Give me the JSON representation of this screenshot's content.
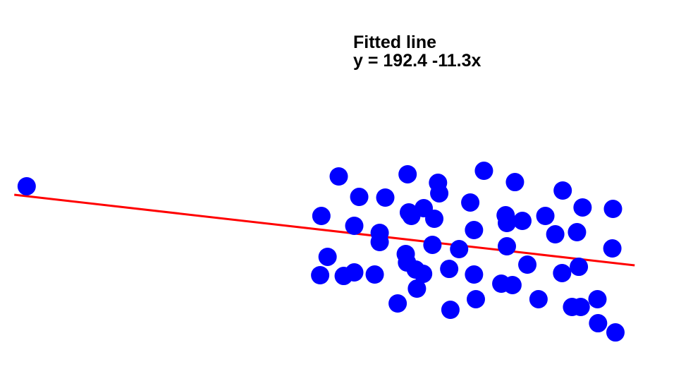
{
  "chart_data": {
    "type": "scatter",
    "title": "",
    "xlabel": "",
    "ylabel": "",
    "axes_visible": false,
    "grid": false,
    "xlim": [
      -0.23,
      10.94
    ],
    "ylim": [
      -94.6,
      504.3
    ],
    "annotation": {
      "line1": "Fitted line",
      "line2": "y = 192.4 -11.3x"
    },
    "fit": {
      "intercept": 192.4,
      "slope": -11.3,
      "x_range": [
        0,
        10
      ],
      "color": "#ff0000"
    },
    "marker_color": "#0000ff",
    "points": [
      [
        0.2,
        206.0
      ],
      [
        5.23,
        221.8
      ],
      [
        6.34,
        225.2
      ],
      [
        7.57,
        230.8
      ],
      [
        6.83,
        211.6
      ],
      [
        8.07,
        212.7
      ],
      [
        5.56,
        189.0
      ],
      [
        5.98,
        187.9
      ],
      [
        6.85,
        194.7
      ],
      [
        8.84,
        199.2
      ],
      [
        7.35,
        180.0
      ],
      [
        9.16,
        172.1
      ],
      [
        9.65,
        169.8
      ],
      [
        4.95,
        158.5
      ],
      [
        6.36,
        164.1
      ],
      [
        6.6,
        170.9
      ],
      [
        6.4,
        158.5
      ],
      [
        6.77,
        154.0
      ],
      [
        7.92,
        159.6
      ],
      [
        8.19,
        150.6
      ],
      [
        8.56,
        158.5
      ],
      [
        7.94,
        147.2
      ],
      [
        5.48,
        142.7
      ],
      [
        5.89,
        131.4
      ],
      [
        7.41,
        135.9
      ],
      [
        8.72,
        129.1
      ],
      [
        9.07,
        132.5
      ],
      [
        5.89,
        116.7
      ],
      [
        6.74,
        112.2
      ],
      [
        7.17,
        105.4
      ],
      [
        7.94,
        109.9
      ],
      [
        9.64,
        106.5
      ],
      [
        5.05,
        93.0
      ],
      [
        6.31,
        97.5
      ],
      [
        6.33,
        83.9
      ],
      [
        8.27,
        80.5
      ],
      [
        9.1,
        77.1
      ],
      [
        4.93,
        63.6
      ],
      [
        5.31,
        62.4
      ],
      [
        5.48,
        68.1
      ],
      [
        5.81,
        64.7
      ],
      [
        6.47,
        72.6
      ],
      [
        6.59,
        65.8
      ],
      [
        7.01,
        73.7
      ],
      [
        7.41,
        64.7
      ],
      [
        8.83,
        67.0
      ],
      [
        7.85,
        50.0
      ],
      [
        8.03,
        47.8
      ],
      [
        6.49,
        42.1
      ],
      [
        6.18,
        18.4
      ],
      [
        7.03,
        8.2
      ],
      [
        7.44,
        25.2
      ],
      [
        8.45,
        25.2
      ],
      [
        8.99,
        12.7
      ],
      [
        9.13,
        12.7
      ],
      [
        9.4,
        25.2
      ],
      [
        9.41,
        -13.3
      ],
      [
        9.69,
        -28.0
      ]
    ]
  }
}
